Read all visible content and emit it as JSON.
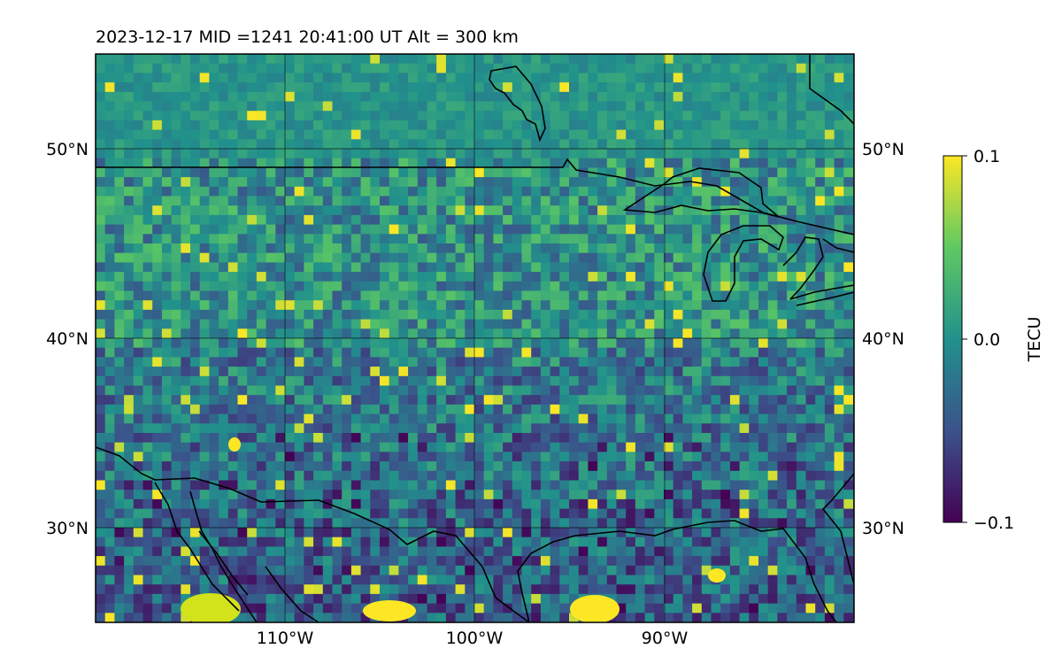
{
  "title": "2023-12-17  MID =1241    20:41:00  UT  Alt = 300 km",
  "map": {
    "lat_range": [
      25,
      55
    ],
    "lon_range": [
      -120,
      -80
    ],
    "lat_ticks": [
      {
        "value": 50,
        "label": "50°N"
      },
      {
        "value": 40,
        "label": "40°N"
      },
      {
        "value": 30,
        "label": "30°N"
      }
    ],
    "lon_ticks": [
      {
        "value": -110,
        "label": "110°W"
      },
      {
        "value": -100,
        "label": "100°W"
      },
      {
        "value": -90,
        "label": "90°W"
      }
    ],
    "gridlines": true,
    "colormap": "viridis"
  },
  "colorbar": {
    "label": "TECU",
    "min": -0.1,
    "max": 0.1,
    "ticks": [
      {
        "value": 0.1,
        "label": "0.1"
      },
      {
        "value": 0.0,
        "label": "0.0"
      },
      {
        "value": -0.1,
        "label": "−0.1"
      }
    ],
    "colors": [
      "#440154",
      "#3b528b",
      "#21918c",
      "#5ec962",
      "#fde725"
    ]
  }
}
